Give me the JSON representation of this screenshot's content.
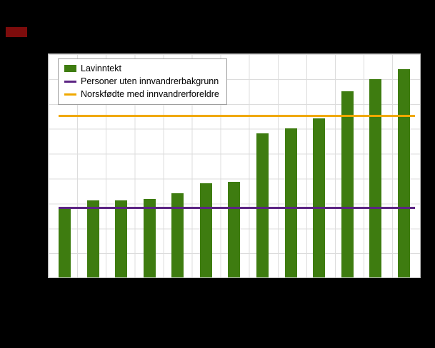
{
  "legend": {
    "items": [
      {
        "label": "Lavinntekt",
        "type": "bar",
        "color": "#3e7c10"
      },
      {
        "label": "Personer uten innvandrerbakgrunn",
        "type": "line",
        "color": "#5c2483"
      },
      {
        "label": "Norskfødte med innvandrerforeldre",
        "type": "line",
        "color": "#f0a800"
      }
    ]
  },
  "chart_data": {
    "type": "bar",
    "title": "",
    "xlabel": "",
    "ylabel": "",
    "ylim": [
      0,
      45
    ],
    "grid": true,
    "legend_position": "top-left",
    "categories": [
      "",
      "",
      "",
      "",
      "",
      "",
      "",
      "",
      "",
      "",
      "",
      "",
      ""
    ],
    "series": [
      {
        "name": "Lavinntekt",
        "kind": "bar",
        "color": "#3e7c10",
        "values": [
          14.3,
          15.5,
          15.5,
          15.8,
          17.0,
          19.0,
          19.3,
          29.0,
          30.0,
          32.0,
          37.5,
          40.0,
          42.0
        ]
      },
      {
        "name": "Personer uten innvandrerbakgrunn",
        "kind": "hline",
        "color": "#5c2483",
        "value": 14.0
      },
      {
        "name": "Norskfødte med innvandrerforeldre",
        "kind": "hline",
        "color": "#f0a800",
        "value": 32.5
      }
    ]
  }
}
